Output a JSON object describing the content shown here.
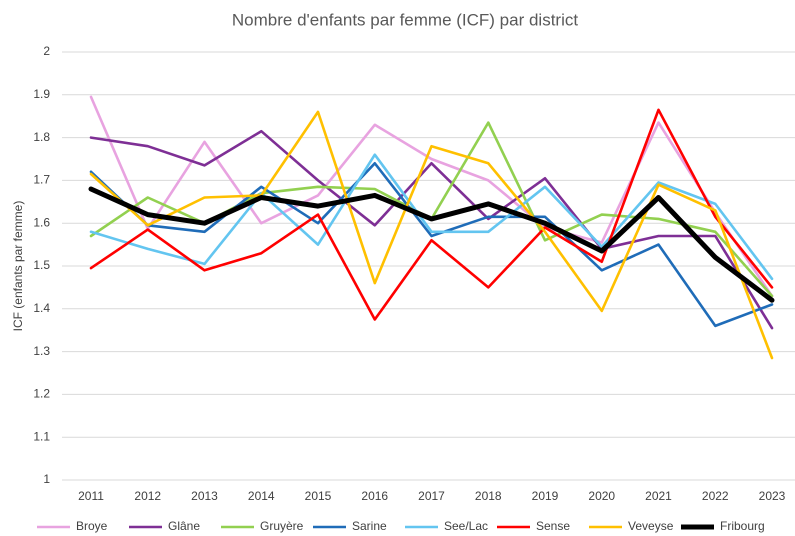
{
  "chart_data": {
    "type": "line",
    "title": "Nombre d'enfants par femme (ICF) par district",
    "y_label": "ICF (enfants par femme)",
    "categories": [
      "2011",
      "2012",
      "2013",
      "2014",
      "2015",
      "2016",
      "2017",
      "2018",
      "2019",
      "2020",
      "2021",
      "2022",
      "2023"
    ],
    "ylim": [
      1,
      2
    ],
    "yticks": [
      1,
      1.1,
      1.2,
      1.3,
      1.4,
      1.5,
      1.6,
      1.7,
      1.8,
      1.9,
      2
    ],
    "grid": true,
    "legend": "bottom",
    "series": [
      {
        "name": "Broye",
        "color": "#e8a3e0",
        "values": [
          1.895,
          1.587,
          1.79,
          1.6,
          1.665,
          1.83,
          1.75,
          1.7,
          1.59,
          1.555,
          1.835,
          1.625,
          1.43
        ]
      },
      {
        "name": "Glâne",
        "color": "#7e2f95",
        "values": [
          1.8,
          1.78,
          1.735,
          1.815,
          1.7,
          1.595,
          1.74,
          1.61,
          1.705,
          1.54,
          1.57,
          1.57,
          1.355
        ]
      },
      {
        "name": "Gruyère",
        "color": "#92d050",
        "values": [
          1.57,
          1.66,
          1.6,
          1.67,
          1.685,
          1.68,
          1.61,
          1.835,
          1.56,
          1.62,
          1.61,
          1.58,
          1.43
        ]
      },
      {
        "name": "Sarine",
        "color": "#1f6cb8",
        "values": [
          1.72,
          1.595,
          1.58,
          1.685,
          1.6,
          1.74,
          1.57,
          1.615,
          1.615,
          1.49,
          1.55,
          1.36,
          1.41
        ]
      },
      {
        "name": "See/Lac",
        "color": "#63c5f0",
        "values": [
          1.58,
          1.54,
          1.505,
          1.67,
          1.55,
          1.76,
          1.58,
          1.58,
          1.685,
          1.545,
          1.695,
          1.645,
          1.47
        ]
      },
      {
        "name": "Sense",
        "color": "#ff0000",
        "values": [
          1.495,
          1.585,
          1.49,
          1.53,
          1.62,
          1.375,
          1.56,
          1.45,
          1.59,
          1.51,
          1.865,
          1.615,
          1.45
        ]
      },
      {
        "name": "Veveyse",
        "color": "#ffc000",
        "values": [
          1.715,
          1.595,
          1.66,
          1.665,
          1.86,
          1.46,
          1.78,
          1.74,
          1.58,
          1.395,
          1.69,
          1.63,
          1.285
        ]
      },
      {
        "name": "Fribourg",
        "color": "#000000",
        "highlight": true,
        "values": [
          1.68,
          1.62,
          1.6,
          1.66,
          1.64,
          1.665,
          1.61,
          1.645,
          1.6,
          1.535,
          1.66,
          1.52,
          1.42
        ]
      }
    ]
  }
}
